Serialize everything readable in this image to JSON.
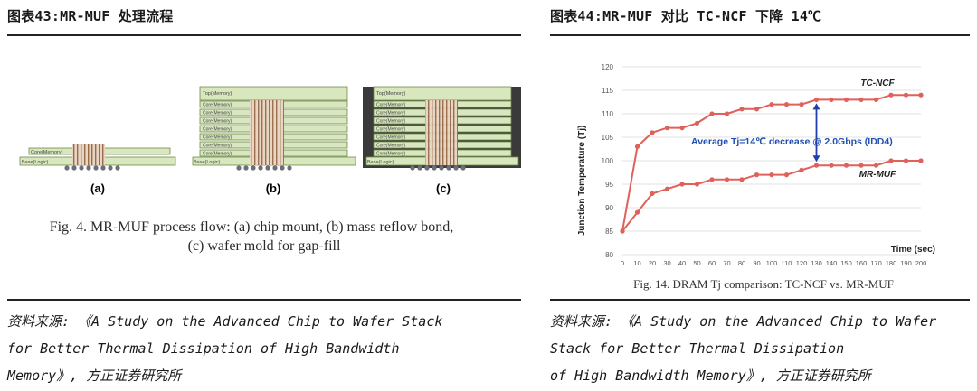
{
  "left": {
    "title": "图表43:MR-MUF 处理流程",
    "diagram": {
      "labels": {
        "base": "Base(Logic)",
        "core": "Core(Memory)",
        "top": "Top(Memory)"
      },
      "panels": [
        "(a)",
        "(b)",
        "(c)"
      ],
      "caption_line1": "Fig. 4.  MR-MUF process flow: (a) chip mount, (b) mass reflow bond,",
      "caption_line2": "(c) wafer mold for gap-fill"
    },
    "source": "资料来源: 《A Study on the Advanced Chip to Wafer Stack\nfor Better Thermal Dissipation of High Bandwidth\nMemory》, 方正证券研究所"
  },
  "right": {
    "title": "图表44:MR-MUF 对比 TC-NCF 下降 14℃",
    "source": "资料来源: 《A Study on the Advanced Chip to Wafer\nStack for Better Thermal Dissipation\nof High Bandwidth Memory》, 方正证券研究所"
  },
  "chart_data": {
    "type": "line",
    "x": [
      0,
      10,
      20,
      30,
      40,
      50,
      60,
      70,
      80,
      90,
      100,
      110,
      120,
      130,
      140,
      150,
      160,
      170,
      180,
      190,
      200
    ],
    "series": [
      {
        "name": "TC-NCF",
        "color": "#e0605a",
        "values": [
          85,
          103,
          106,
          107,
          107,
          108,
          110,
          110,
          111,
          111,
          112,
          112,
          112,
          113,
          113,
          113,
          113,
          113,
          114,
          114,
          114
        ]
      },
      {
        "name": "MR-MUF",
        "color": "#e0605a",
        "values": [
          85,
          89,
          93,
          94,
          95,
          95,
          96,
          96,
          96,
          97,
          97,
          97,
          98,
          99,
          99,
          99,
          99,
          99,
          100,
          100,
          100
        ]
      }
    ],
    "xlabel": "Time (sec)",
    "ylabel": "Junction Temperature (Tj)",
    "xlim": [
      0,
      200
    ],
    "ylim": [
      80,
      120
    ],
    "y_ticks": [
      80,
      85,
      90,
      95,
      100,
      105,
      110,
      115,
      120
    ],
    "annotation": "Average Tj=14℃ decrease @ 2.0Gbps (IDD4)",
    "annotation_arrow_x": 130,
    "caption": "Fig. 14. DRAM Tj comparison: TC-NCF vs. MR-MUF",
    "grid": true
  }
}
